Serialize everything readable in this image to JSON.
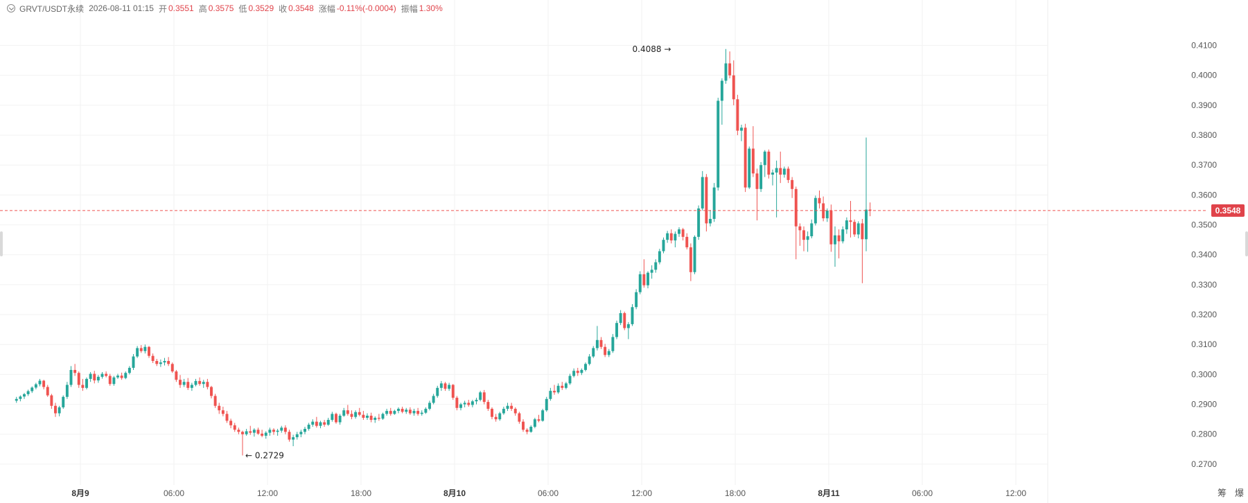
{
  "header": {
    "symbol": "GRVT/USDT永续",
    "timestamp": "2026-08-11 01:15",
    "fields": [
      {
        "label": "开",
        "value": "0.3551"
      },
      {
        "label": "高",
        "value": "0.3575"
      },
      {
        "label": "低",
        "value": "0.3529"
      },
      {
        "label": "收",
        "value": "0.3548"
      },
      {
        "label": "涨幅",
        "value": "-0.11%(-0.0004)"
      },
      {
        "label": "振幅",
        "value": "1.30%"
      }
    ]
  },
  "footer": {
    "left": "筹",
    "right": "爆"
  },
  "colors": {
    "up": "#26a69a",
    "down": "#ef5350",
    "value_text": "#e0434a",
    "grid": "#f2f2f2"
  },
  "chart_data": {
    "type": "candlestick",
    "y_ticks": [
      "0.4100",
      "0.4000",
      "0.3900",
      "0.3800",
      "0.3700",
      "0.3600",
      "0.3500",
      "0.3400",
      "0.3300",
      "0.3200",
      "0.3100",
      "0.3000",
      "0.2900",
      "0.2800",
      "0.2700"
    ],
    "ylim": [
      0.2672,
      0.415
    ],
    "x_ticks": [
      {
        "label": "8月9",
        "hour": 0,
        "bold": true
      },
      {
        "label": "06:00",
        "hour": 6,
        "bold": false
      },
      {
        "label": "12:00",
        "hour": 12,
        "bold": false
      },
      {
        "label": "18:00",
        "hour": 18,
        "bold": false
      },
      {
        "label": "8月10",
        "hour": 24,
        "bold": true
      },
      {
        "label": "06:00",
        "hour": 30,
        "bold": false
      },
      {
        "label": "12:00",
        "hour": 36,
        "bold": false
      },
      {
        "label": "18:00",
        "hour": 42,
        "bold": false
      },
      {
        "label": "8月11",
        "hour": 48,
        "bold": true
      },
      {
        "label": "06:00",
        "hour": 54,
        "bold": false
      },
      {
        "label": "12:00",
        "hour": 60,
        "bold": false
      }
    ],
    "interval_hours": 0.25,
    "first_candle_hour": -4.1,
    "current_price": {
      "label": "0.3548",
      "value": 0.3548
    },
    "annotations": [
      {
        "label": "0.4088",
        "value": 0.4088,
        "candle": 169,
        "side": "left"
      },
      {
        "label": "0.2729",
        "value": 0.2729,
        "candle": 58,
        "side": "right"
      }
    ],
    "candles": [
      [
        0.2912,
        0.2925,
        0.2905,
        0.2918
      ],
      [
        0.2918,
        0.293,
        0.291,
        0.2926
      ],
      [
        0.2926,
        0.2938,
        0.2918,
        0.2934
      ],
      [
        0.2934,
        0.2949,
        0.2928,
        0.2944
      ],
      [
        0.2944,
        0.296,
        0.2938,
        0.2956
      ],
      [
        0.2956,
        0.2972,
        0.295,
        0.2967
      ],
      [
        0.2967,
        0.2985,
        0.296,
        0.2979
      ],
      [
        0.2979,
        0.2982,
        0.295,
        0.2958
      ],
      [
        0.2958,
        0.2965,
        0.2925,
        0.293
      ],
      [
        0.293,
        0.2935,
        0.2885,
        0.2895
      ],
      [
        0.2895,
        0.2905,
        0.2858,
        0.287
      ],
      [
        0.287,
        0.2895,
        0.286,
        0.289
      ],
      [
        0.289,
        0.293,
        0.2885,
        0.2925
      ],
      [
        0.2925,
        0.2975,
        0.2918,
        0.2965
      ],
      [
        0.2965,
        0.3028,
        0.2958,
        0.3015
      ],
      [
        0.3015,
        0.3035,
        0.2995,
        0.3005
      ],
      [
        0.3005,
        0.301,
        0.2955,
        0.2965
      ],
      [
        0.2965,
        0.2985,
        0.2945,
        0.2955
      ],
      [
        0.2955,
        0.299,
        0.295,
        0.2985
      ],
      [
        0.2985,
        0.3008,
        0.2975,
        0.3002
      ],
      [
        0.3002,
        0.3012,
        0.297,
        0.298
      ],
      [
        0.298,
        0.2998,
        0.2972,
        0.2992
      ],
      [
        0.2992,
        0.3008,
        0.2986,
        0.3002
      ],
      [
        0.3002,
        0.301,
        0.299,
        0.2995
      ],
      [
        0.2995,
        0.3002,
        0.2962,
        0.2968
      ],
      [
        0.2968,
        0.2995,
        0.2962,
        0.299
      ],
      [
        0.299,
        0.3002,
        0.2985,
        0.2996
      ],
      [
        0.2996,
        0.3006,
        0.2982,
        0.2988
      ],
      [
        0.2988,
        0.301,
        0.2984,
        0.3005
      ],
      [
        0.3005,
        0.3028,
        0.3,
        0.3022
      ],
      [
        0.3022,
        0.3068,
        0.3015,
        0.306
      ],
      [
        0.306,
        0.3095,
        0.3055,
        0.3088
      ],
      [
        0.3088,
        0.3098,
        0.3072,
        0.3078
      ],
      [
        0.3078,
        0.31,
        0.307,
        0.3092
      ],
      [
        0.3092,
        0.3095,
        0.3055,
        0.3062
      ],
      [
        0.3062,
        0.307,
        0.3038,
        0.3045
      ],
      [
        0.3045,
        0.3052,
        0.3028,
        0.3035
      ],
      [
        0.3035,
        0.305,
        0.3025,
        0.304
      ],
      [
        0.304,
        0.3055,
        0.303,
        0.3045
      ],
      [
        0.3045,
        0.3058,
        0.3028,
        0.3035
      ],
      [
        0.3035,
        0.304,
        0.3005,
        0.301
      ],
      [
        0.301,
        0.3015,
        0.2975,
        0.2982
      ],
      [
        0.2982,
        0.2998,
        0.2955,
        0.2965
      ],
      [
        0.2965,
        0.2985,
        0.2958,
        0.2975
      ],
      [
        0.2975,
        0.2988,
        0.2948,
        0.2955
      ],
      [
        0.2955,
        0.2972,
        0.2945,
        0.2965
      ],
      [
        0.2965,
        0.2985,
        0.296,
        0.2978
      ],
      [
        0.2978,
        0.299,
        0.2962,
        0.2968
      ],
      [
        0.2968,
        0.2982,
        0.2955,
        0.2975
      ],
      [
        0.2975,
        0.2985,
        0.295,
        0.2958
      ],
      [
        0.2958,
        0.2962,
        0.292,
        0.2928
      ],
      [
        0.2928,
        0.2935,
        0.2888,
        0.2895
      ],
      [
        0.2895,
        0.2905,
        0.2868,
        0.288
      ],
      [
        0.288,
        0.2892,
        0.286,
        0.2868
      ],
      [
        0.2868,
        0.2878,
        0.2838,
        0.2845
      ],
      [
        0.2845,
        0.2852,
        0.282,
        0.283
      ],
      [
        0.283,
        0.2838,
        0.2808,
        0.2815
      ],
      [
        0.2815,
        0.2822,
        0.28,
        0.2808
      ],
      [
        0.2808,
        0.2812,
        0.2729,
        0.28
      ],
      [
        0.28,
        0.2818,
        0.2795,
        0.281
      ],
      [
        0.281,
        0.2828,
        0.2798,
        0.2805
      ],
      [
        0.2805,
        0.282,
        0.2792,
        0.2815
      ],
      [
        0.2815,
        0.2822,
        0.2798,
        0.2802
      ],
      [
        0.2802,
        0.2815,
        0.279,
        0.2795
      ],
      [
        0.2795,
        0.281,
        0.2785,
        0.2805
      ],
      [
        0.2805,
        0.2822,
        0.2795,
        0.2815
      ],
      [
        0.2815,
        0.282,
        0.2798,
        0.2808
      ],
      [
        0.2808,
        0.2818,
        0.2795,
        0.2812
      ],
      [
        0.2812,
        0.2828,
        0.2805,
        0.2822
      ],
      [
        0.2822,
        0.283,
        0.28,
        0.2808
      ],
      [
        0.2808,
        0.2815,
        0.2775,
        0.2782
      ],
      [
        0.2782,
        0.2798,
        0.276,
        0.279
      ],
      [
        0.279,
        0.2808,
        0.2782,
        0.28
      ],
      [
        0.28,
        0.2815,
        0.279,
        0.2808
      ],
      [
        0.2808,
        0.2825,
        0.28,
        0.2818
      ],
      [
        0.2818,
        0.2838,
        0.2812,
        0.2832
      ],
      [
        0.2832,
        0.285,
        0.2825,
        0.2842
      ],
      [
        0.2842,
        0.2858,
        0.2822,
        0.2828
      ],
      [
        0.2828,
        0.2845,
        0.282,
        0.284
      ],
      [
        0.284,
        0.2848,
        0.2825,
        0.2832
      ],
      [
        0.2832,
        0.2855,
        0.2828,
        0.2848
      ],
      [
        0.2848,
        0.2875,
        0.2842,
        0.2868
      ],
      [
        0.2868,
        0.2872,
        0.2835,
        0.284
      ],
      [
        0.284,
        0.2868,
        0.2832,
        0.2862
      ],
      [
        0.2862,
        0.2888,
        0.2858,
        0.288
      ],
      [
        0.288,
        0.2898,
        0.2862,
        0.2868
      ],
      [
        0.2868,
        0.288,
        0.285,
        0.2858
      ],
      [
        0.2858,
        0.288,
        0.2852,
        0.2874
      ],
      [
        0.2874,
        0.2888,
        0.286,
        0.2865
      ],
      [
        0.2865,
        0.2878,
        0.2848,
        0.2855
      ],
      [
        0.2855,
        0.287,
        0.2848,
        0.2862
      ],
      [
        0.2862,
        0.2872,
        0.284,
        0.2848
      ],
      [
        0.2848,
        0.286,
        0.2838,
        0.2855
      ],
      [
        0.2855,
        0.2868,
        0.2845,
        0.2852
      ],
      [
        0.2852,
        0.2872,
        0.2848,
        0.2868
      ],
      [
        0.2868,
        0.2885,
        0.2862,
        0.2878
      ],
      [
        0.2878,
        0.2888,
        0.2862,
        0.2868
      ],
      [
        0.2868,
        0.2882,
        0.2865,
        0.2878
      ],
      [
        0.2878,
        0.289,
        0.287,
        0.2885
      ],
      [
        0.2885,
        0.2892,
        0.287,
        0.2875
      ],
      [
        0.2875,
        0.2888,
        0.2868,
        0.2882
      ],
      [
        0.2882,
        0.289,
        0.2865,
        0.287
      ],
      [
        0.287,
        0.2885,
        0.2862,
        0.2878
      ],
      [
        0.2878,
        0.2888,
        0.2862,
        0.2868
      ],
      [
        0.2868,
        0.288,
        0.2862,
        0.2872
      ],
      [
        0.2872,
        0.289,
        0.2868,
        0.2885
      ],
      [
        0.2885,
        0.2912,
        0.288,
        0.2905
      ],
      [
        0.2905,
        0.2935,
        0.29,
        0.2928
      ],
      [
        0.2928,
        0.2962,
        0.2922,
        0.2955
      ],
      [
        0.2955,
        0.2978,
        0.2945,
        0.297
      ],
      [
        0.297,
        0.2975,
        0.2945,
        0.2952
      ],
      [
        0.2952,
        0.2972,
        0.2945,
        0.2965
      ],
      [
        0.2965,
        0.2968,
        0.2915,
        0.2922
      ],
      [
        0.2922,
        0.2928,
        0.288,
        0.2888
      ],
      [
        0.2888,
        0.2905,
        0.288,
        0.29
      ],
      [
        0.29,
        0.2912,
        0.289,
        0.2905
      ],
      [
        0.2905,
        0.2915,
        0.2892,
        0.2898
      ],
      [
        0.2898,
        0.2915,
        0.289,
        0.291
      ],
      [
        0.291,
        0.2922,
        0.29,
        0.2915
      ],
      [
        0.2915,
        0.2945,
        0.291,
        0.294
      ],
      [
        0.294,
        0.2948,
        0.29,
        0.2908
      ],
      [
        0.2908,
        0.2915,
        0.2878,
        0.2885
      ],
      [
        0.2885,
        0.289,
        0.285,
        0.2858
      ],
      [
        0.2858,
        0.2868,
        0.2842,
        0.285
      ],
      [
        0.285,
        0.2875,
        0.2845,
        0.287
      ],
      [
        0.287,
        0.2892,
        0.2865,
        0.2885
      ],
      [
        0.2885,
        0.2905,
        0.2878,
        0.2895
      ],
      [
        0.2895,
        0.2905,
        0.2878,
        0.2885
      ],
      [
        0.2885,
        0.289,
        0.2862,
        0.287
      ],
      [
        0.287,
        0.2875,
        0.2835,
        0.2842
      ],
      [
        0.2842,
        0.285,
        0.2808,
        0.2815
      ],
      [
        0.2815,
        0.282,
        0.28,
        0.2808
      ],
      [
        0.2808,
        0.283,
        0.2805,
        0.2825
      ],
      [
        0.2825,
        0.2855,
        0.282,
        0.285
      ],
      [
        0.285,
        0.2865,
        0.284,
        0.2845
      ],
      [
        0.2845,
        0.2885,
        0.2842,
        0.288
      ],
      [
        0.288,
        0.2925,
        0.2875,
        0.2918
      ],
      [
        0.2918,
        0.2955,
        0.2912,
        0.2945
      ],
      [
        0.2945,
        0.2965,
        0.2932,
        0.294
      ],
      [
        0.294,
        0.297,
        0.2935,
        0.2962
      ],
      [
        0.2962,
        0.2975,
        0.2948,
        0.2955
      ],
      [
        0.2955,
        0.2975,
        0.295,
        0.297
      ],
      [
        0.297,
        0.3002,
        0.2965,
        0.2995
      ],
      [
        0.2995,
        0.302,
        0.299,
        0.3012
      ],
      [
        0.3012,
        0.3022,
        0.2995,
        0.3005
      ],
      [
        0.3005,
        0.302,
        0.2998,
        0.3015
      ],
      [
        0.3015,
        0.304,
        0.301,
        0.3035
      ],
      [
        0.3035,
        0.3068,
        0.303,
        0.306
      ],
      [
        0.306,
        0.3095,
        0.3055,
        0.3088
      ],
      [
        0.3088,
        0.3162,
        0.308,
        0.3115
      ],
      [
        0.3115,
        0.3125,
        0.3085,
        0.3092
      ],
      [
        0.3092,
        0.3102,
        0.3058,
        0.3065
      ],
      [
        0.3065,
        0.3085,
        0.3058,
        0.3078
      ],
      [
        0.3078,
        0.3135,
        0.3072,
        0.3125
      ],
      [
        0.3125,
        0.318,
        0.3118,
        0.3172
      ],
      [
        0.3172,
        0.3215,
        0.3165,
        0.3205
      ],
      [
        0.3205,
        0.321,
        0.3148,
        0.3155
      ],
      [
        0.3155,
        0.3175,
        0.3118,
        0.3168
      ],
      [
        0.3168,
        0.3235,
        0.3162,
        0.3225
      ],
      [
        0.3225,
        0.3285,
        0.3218,
        0.3275
      ],
      [
        0.3275,
        0.3345,
        0.3268,
        0.3335
      ],
      [
        0.3335,
        0.3385,
        0.329,
        0.3298
      ],
      [
        0.3298,
        0.3345,
        0.3288,
        0.334
      ],
      [
        0.334,
        0.3365,
        0.332,
        0.335
      ],
      [
        0.335,
        0.3385,
        0.334,
        0.3375
      ],
      [
        0.3375,
        0.342,
        0.3368,
        0.3412
      ],
      [
        0.3412,
        0.3458,
        0.3405,
        0.345
      ],
      [
        0.345,
        0.348,
        0.344,
        0.3472
      ],
      [
        0.3472,
        0.3485,
        0.3438,
        0.3448
      ],
      [
        0.3448,
        0.3478,
        0.3425,
        0.347
      ],
      [
        0.347,
        0.3492,
        0.346,
        0.3485
      ],
      [
        0.3485,
        0.349,
        0.3448,
        0.346
      ],
      [
        0.346,
        0.3472,
        0.3418,
        0.3425
      ],
      [
        0.3425,
        0.3438,
        0.3312,
        0.3342
      ],
      [
        0.3342,
        0.3465,
        0.3335,
        0.346
      ],
      [
        0.346,
        0.3565,
        0.345,
        0.3555
      ],
      [
        0.3555,
        0.368,
        0.3548,
        0.366
      ],
      [
        0.366,
        0.367,
        0.3478,
        0.3505
      ],
      [
        0.3505,
        0.355,
        0.3495,
        0.352
      ],
      [
        0.352,
        0.364,
        0.351,
        0.3625
      ],
      [
        0.3625,
        0.3925,
        0.3615,
        0.3915
      ],
      [
        0.3915,
        0.399,
        0.3835,
        0.3982
      ],
      [
        0.3982,
        0.4088,
        0.3972,
        0.404
      ],
      [
        0.404,
        0.408,
        0.399,
        0.4
      ],
      [
        0.4,
        0.405,
        0.39,
        0.392
      ],
      [
        0.392,
        0.3935,
        0.38,
        0.3815
      ],
      [
        0.3815,
        0.3835,
        0.378,
        0.3825
      ],
      [
        0.3825,
        0.3838,
        0.361,
        0.3625
      ],
      [
        0.3625,
        0.3762,
        0.362,
        0.3755
      ],
      [
        0.3755,
        0.383,
        0.366,
        0.3672
      ],
      [
        0.3672,
        0.3688,
        0.3515,
        0.362
      ],
      [
        0.362,
        0.371,
        0.361,
        0.37
      ],
      [
        0.37,
        0.375,
        0.366,
        0.3745
      ],
      [
        0.3745,
        0.3752,
        0.3655,
        0.3668
      ],
      [
        0.3668,
        0.3685,
        0.3632,
        0.3675
      ],
      [
        0.3675,
        0.3715,
        0.3525,
        0.369
      ],
      [
        0.369,
        0.3745,
        0.364,
        0.3668
      ],
      [
        0.3668,
        0.3695,
        0.3658,
        0.3688
      ],
      [
        0.3688,
        0.3695,
        0.364,
        0.365
      ],
      [
        0.365,
        0.366,
        0.359,
        0.362
      ],
      [
        0.362,
        0.3628,
        0.3385,
        0.3495
      ],
      [
        0.3495,
        0.3505,
        0.343,
        0.3482
      ],
      [
        0.3482,
        0.3495,
        0.3412,
        0.345
      ],
      [
        0.345,
        0.3478,
        0.341,
        0.3462
      ],
      [
        0.3462,
        0.3518,
        0.3455,
        0.3505
      ],
      [
        0.3505,
        0.3598,
        0.3498,
        0.359
      ],
      [
        0.359,
        0.3615,
        0.3555,
        0.3572
      ],
      [
        0.3572,
        0.3595,
        0.3512,
        0.3522
      ],
      [
        0.3522,
        0.3555,
        0.351,
        0.3548
      ],
      [
        0.3548,
        0.3568,
        0.341,
        0.3435
      ],
      [
        0.3435,
        0.3495,
        0.336,
        0.3465
      ],
      [
        0.3465,
        0.3485,
        0.3388,
        0.3445
      ],
      [
        0.3445,
        0.3495,
        0.3438,
        0.3485
      ],
      [
        0.3485,
        0.3525,
        0.347,
        0.3515
      ],
      [
        0.3515,
        0.358,
        0.3458,
        0.351
      ],
      [
        0.351,
        0.3518,
        0.346,
        0.3468
      ],
      [
        0.3468,
        0.3512,
        0.3455,
        0.3505
      ],
      [
        0.3505,
        0.352,
        0.3305,
        0.3452
      ],
      [
        0.3452,
        0.3792,
        0.3412,
        0.3551
      ],
      [
        0.3551,
        0.3575,
        0.3529,
        0.3548
      ]
    ]
  }
}
